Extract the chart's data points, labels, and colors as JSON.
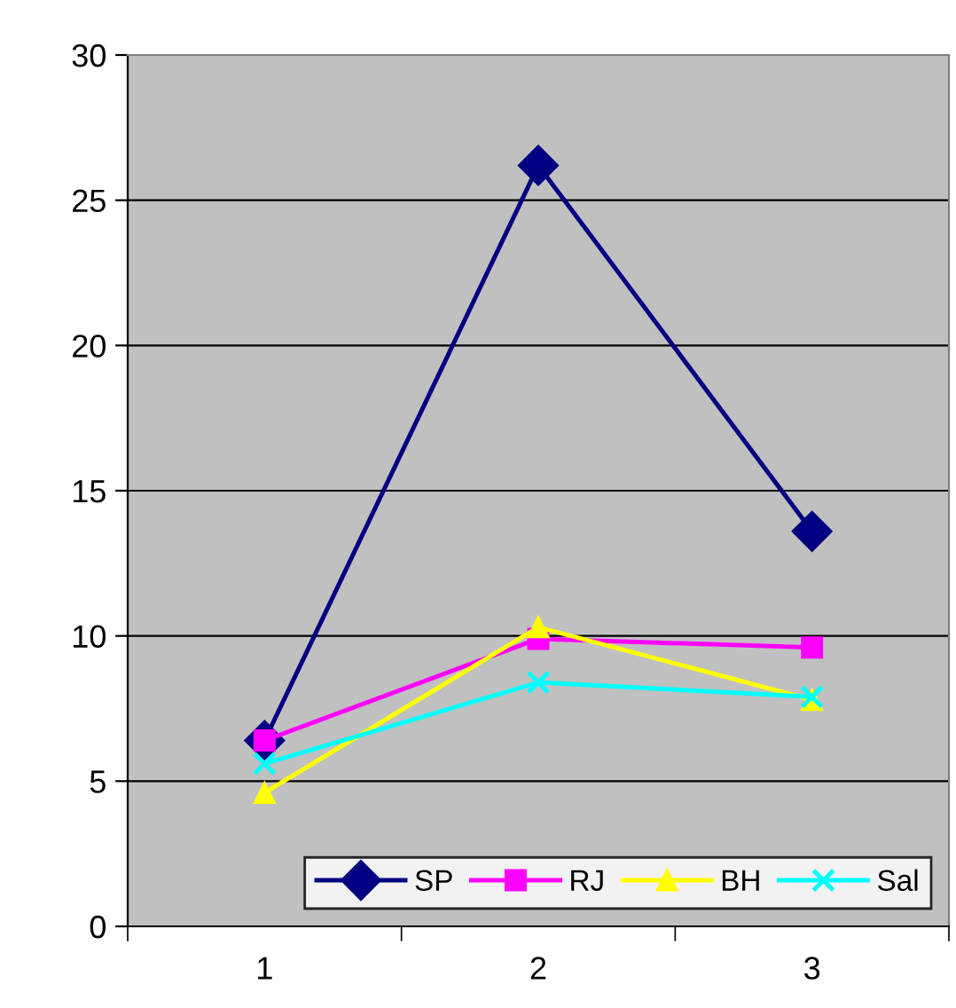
{
  "chart_data": {
    "type": "line",
    "categories": [
      "1",
      "2",
      "3"
    ],
    "series": [
      {
        "name": "SP",
        "color": "#000080",
        "values": [
          6.4,
          26.2,
          13.6
        ],
        "marker": "diamond"
      },
      {
        "name": "RJ",
        "color": "#ff00ff",
        "values": [
          6.4,
          9.9,
          9.6
        ],
        "marker": "square"
      },
      {
        "name": "BH",
        "color": "#ffff00",
        "values": [
          4.6,
          10.3,
          7.8
        ],
        "marker": "triangle"
      },
      {
        "name": "Sal",
        "color": "#00ffff",
        "values": [
          5.6,
          8.4,
          7.9
        ],
        "marker": "cross"
      }
    ],
    "ylim": [
      0,
      30
    ],
    "yticks": [
      0,
      5,
      10,
      15,
      20,
      25,
      30
    ],
    "grid": "y",
    "legend": "bottom right",
    "line_style": "solid"
  }
}
